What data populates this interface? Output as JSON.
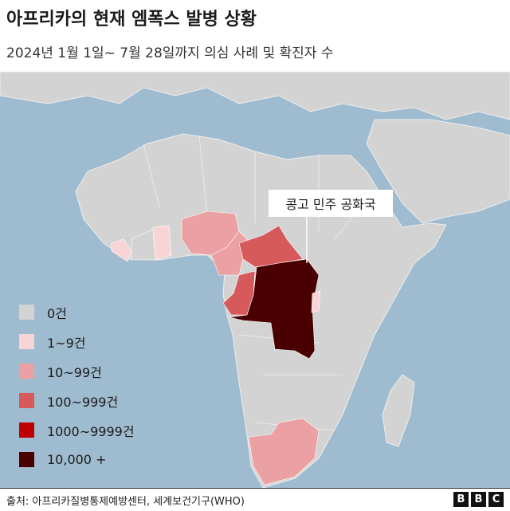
{
  "title": "아프리카의 현재 엠폭스 발병 상황",
  "subtitle": "2024년 1월 1일~ 7월 28일까지 의심 사례 및 확진자 수",
  "colors": {
    "sea": "#9fbbcf",
    "land": "#d3d3d3",
    "border": "#f2f2f2"
  },
  "legend": [
    {
      "label": "0건",
      "color": "#d3d3d3"
    },
    {
      "label": "1~9건",
      "color": "#f8d4d6"
    },
    {
      "label": "10~99건",
      "color": "#eba0a3"
    },
    {
      "label": "100~999건",
      "color": "#d65a5c"
    },
    {
      "label": "1000~9999건",
      "color": "#c00000"
    },
    {
      "label": "10,000 +",
      "color": "#4a0000"
    }
  ],
  "callout": "콩고 민주 공화국",
  "source": "출처: 아프리카질병통제예방센터, 세계보건기구(WHO)",
  "logo": [
    "B",
    "B",
    "C"
  ]
}
